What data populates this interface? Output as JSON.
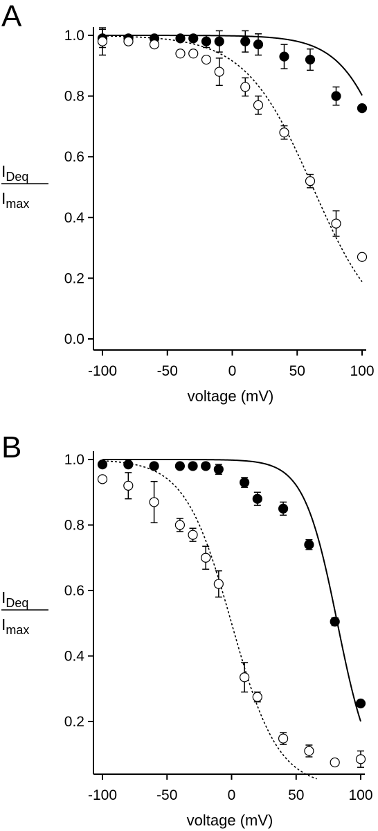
{
  "chart_data": [
    {
      "panel": "A",
      "type": "scatter",
      "xlabel": "voltage (mV)",
      "ylabel": {
        "numerator": "I",
        "numerator_sub": "Deq",
        "denominator": "I",
        "denominator_sub": "max"
      },
      "xlim": [
        -100,
        100
      ],
      "ylim": [
        0.0,
        1.0
      ],
      "xticks": [
        -100,
        -50,
        0,
        50,
        100
      ],
      "yticks": [
        0.0,
        0.2,
        0.4,
        0.6,
        0.8,
        1.0
      ],
      "ytick_labels": [
        "0.0",
        "0.2",
        "0.4",
        "0.6",
        "0.8",
        "1.0"
      ],
      "series": [
        {
          "marker": "filled-circle",
          "fit_line": "solid",
          "color": "#000000",
          "points": [
            {
              "x": -100,
              "y": 0.99,
              "err": 0.03
            },
            {
              "x": -80,
              "y": 0.99,
              "err": 0.0
            },
            {
              "x": -60,
              "y": 0.99,
              "err": 0.0
            },
            {
              "x": -40,
              "y": 0.99,
              "err": 0.0
            },
            {
              "x": -30,
              "y": 0.99,
              "err": 0.0
            },
            {
              "x": -20,
              "y": 0.98,
              "err": 0.02
            },
            {
              "x": -10,
              "y": 0.98,
              "err": 0.035
            },
            {
              "x": 10,
              "y": 0.98,
              "err": 0.035
            },
            {
              "x": 20,
              "y": 0.97,
              "err": 0.035
            },
            {
              "x": 40,
              "y": 0.93,
              "err": 0.04
            },
            {
              "x": 60,
              "y": 0.92,
              "err": 0.035
            },
            {
              "x": 80,
              "y": 0.8,
              "err": 0.03
            },
            {
              "x": 100,
              "y": 0.76,
              "err": 0.0
            }
          ],
          "fit": {
            "v_half": 128,
            "k": 20
          }
        },
        {
          "marker": "open-circle",
          "fit_line": "dashed",
          "color": "#000000",
          "points": [
            {
              "x": -100,
              "y": 0.98,
              "err": 0.045
            },
            {
              "x": -80,
              "y": 0.98,
              "err": 0.0
            },
            {
              "x": -60,
              "y": 0.97,
              "err": 0.0
            },
            {
              "x": -40,
              "y": 0.94,
              "err": 0.0
            },
            {
              "x": -30,
              "y": 0.94,
              "err": 0.0
            },
            {
              "x": -20,
              "y": 0.92,
              "err": 0.0
            },
            {
              "x": -10,
              "y": 0.88,
              "err": 0.045
            },
            {
              "x": 10,
              "y": 0.83,
              "err": 0.03
            },
            {
              "x": 20,
              "y": 0.77,
              "err": 0.03
            },
            {
              "x": 40,
              "y": 0.68,
              "err": 0.022
            },
            {
              "x": 60,
              "y": 0.52,
              "err": 0.022
            },
            {
              "x": 80,
              "y": 0.38,
              "err": 0.042
            },
            {
              "x": 100,
              "y": 0.27,
              "err": 0.0
            }
          ],
          "fit": {
            "v_half": 62,
            "k": 26
          }
        }
      ]
    },
    {
      "panel": "B",
      "type": "scatter",
      "xlabel": "voltage (mV)",
      "ylabel": {
        "numerator": "I",
        "numerator_sub": "Deq",
        "denominator": "I",
        "denominator_sub": "max"
      },
      "xlim": [
        -100,
        100
      ],
      "ylim": [
        0.05,
        1.0
      ],
      "xticks": [
        -100,
        -50,
        0,
        50,
        100
      ],
      "yticks": [
        0.2,
        0.4,
        0.6,
        0.8,
        1.0
      ],
      "ytick_labels": [
        "0.2",
        "0.4",
        "0.6",
        "0.8",
        "1.0"
      ],
      "series": [
        {
          "marker": "filled-circle",
          "fit_line": "solid",
          "color": "#000000",
          "points": [
            {
              "x": -100,
              "y": 0.985,
              "err": 0.0
            },
            {
              "x": -80,
              "y": 0.985,
              "err": 0.0
            },
            {
              "x": -60,
              "y": 0.98,
              "err": 0.0
            },
            {
              "x": -40,
              "y": 0.98,
              "err": 0.0
            },
            {
              "x": -30,
              "y": 0.98,
              "err": 0.0
            },
            {
              "x": -20,
              "y": 0.98,
              "err": 0.0
            },
            {
              "x": -10,
              "y": 0.97,
              "err": 0.015
            },
            {
              "x": 10,
              "y": 0.93,
              "err": 0.015
            },
            {
              "x": 20,
              "y": 0.88,
              "err": 0.02
            },
            {
              "x": 40,
              "y": 0.85,
              "err": 0.02
            },
            {
              "x": 60,
              "y": 0.74,
              "err": 0.015
            },
            {
              "x": 80,
              "y": 0.505,
              "err": 0.012
            },
            {
              "x": 100,
              "y": 0.255,
              "err": 0.0
            }
          ],
          "fit": {
            "v_half": 82,
            "k": 13
          }
        },
        {
          "marker": "open-circle",
          "fit_line": "dashed",
          "color": "#000000",
          "points": [
            {
              "x": -100,
              "y": 0.94,
              "err": 0.0
            },
            {
              "x": -80,
              "y": 0.92,
              "err": 0.04
            },
            {
              "x": -60,
              "y": 0.87,
              "err": 0.063
            },
            {
              "x": -40,
              "y": 0.8,
              "err": 0.02
            },
            {
              "x": -30,
              "y": 0.77,
              "err": 0.02
            },
            {
              "x": -20,
              "y": 0.7,
              "err": 0.035
            },
            {
              "x": -10,
              "y": 0.62,
              "err": 0.04
            },
            {
              "x": 10,
              "y": 0.335,
              "err": 0.045
            },
            {
              "x": 20,
              "y": 0.275,
              "err": 0.015
            },
            {
              "x": 40,
              "y": 0.148,
              "err": 0.018
            },
            {
              "x": 60,
              "y": 0.11,
              "err": 0.018
            },
            {
              "x": 80,
              "y": 0.075,
              "err": 0.0
            },
            {
              "x": 100,
              "y": 0.085,
              "err": 0.025
            }
          ],
          "fit": {
            "v_half": 0,
            "k": 18,
            "x_max": 66
          }
        }
      ]
    }
  ]
}
